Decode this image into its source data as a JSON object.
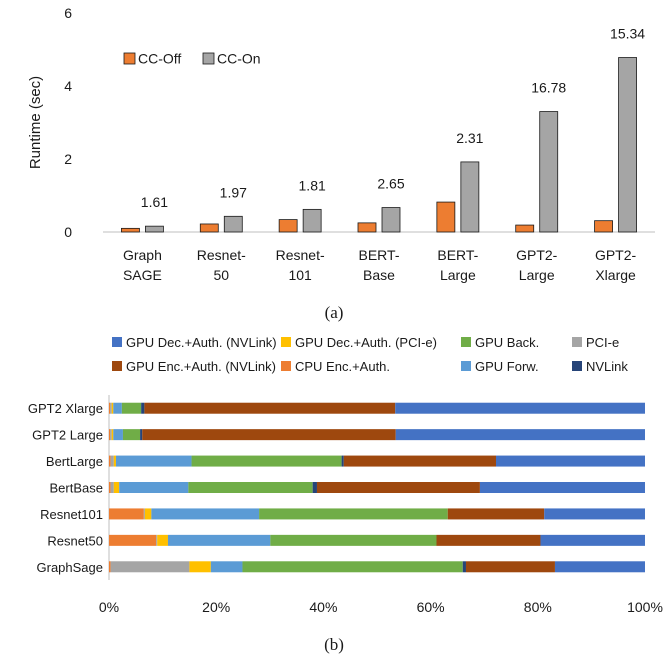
{
  "chart_data": [
    {
      "type": "bar",
      "caption": "(a)",
      "ylabel": "Runtime (sec)",
      "ylim": [
        0,
        6
      ],
      "yticks": [
        0,
        2,
        4,
        6
      ],
      "legend_placement": "top-left",
      "categories": [
        [
          "Graph",
          "SAGE"
        ],
        [
          "Resnet-",
          "50"
        ],
        [
          "Resnet-",
          "101"
        ],
        [
          "BERT-",
          "Base"
        ],
        [
          "BERT-",
          "Large"
        ],
        [
          "GPT2-",
          "Large"
        ],
        [
          "GPT2-",
          "Xlarge"
        ]
      ],
      "series": [
        {
          "name": "CC-Off",
          "color": "#ED7D31",
          "values": [
            0.1,
            0.22,
            0.34,
            0.25,
            0.82,
            0.19,
            0.31
          ]
        },
        {
          "name": "CC-On",
          "color": "#A5A5A5",
          "values": [
            0.16,
            0.43,
            0.62,
            0.67,
            1.92,
            3.3,
            4.78
          ]
        }
      ],
      "data_labels": [
        "1.61",
        "1.97",
        "1.81",
        "2.65",
        "2.31",
        "16.78",
        "15.34"
      ]
    },
    {
      "type": "bar",
      "orientation": "horizontal",
      "stacked": "percent",
      "caption": "(b)",
      "xlim": [
        0,
        100
      ],
      "xticks": [
        "0%",
        "20%",
        "40%",
        "60%",
        "80%",
        "100%"
      ],
      "legend_placement": "top",
      "categories": [
        "GPT2 Xlarge",
        "GPT2 Large",
        "BertLarge",
        "BertBase",
        "Resnet101",
        "Resnet50",
        "GraphSage"
      ],
      "series": [
        {
          "name": "CPU Enc.+Auth.",
          "color": "#ED7D31",
          "values": [
            0.2,
            0.2,
            0.3,
            0.3,
            6.5,
            8.8,
            0.3
          ]
        },
        {
          "name": "PCI-e",
          "color": "#A5A5A5",
          "values": [
            0.3,
            0.3,
            0.6,
            0.6,
            0.2,
            0.2,
            14.7
          ]
        },
        {
          "name": "GPU Dec.+Auth. (PCI-e)",
          "color": "#FFC000",
          "values": [
            0.3,
            0.3,
            0.4,
            1.0,
            1.2,
            2.0,
            4.0
          ]
        },
        {
          "name": "GPU Forw.",
          "color": "#5B9BD5",
          "values": [
            1.6,
            1.8,
            14.1,
            12.9,
            20.1,
            19.1,
            5.9
          ]
        },
        {
          "name": "GPU Back.",
          "color": "#70AD47",
          "values": [
            3.6,
            3.2,
            28.0,
            23.2,
            35.2,
            31.0,
            41.1
          ]
        },
        {
          "name": "NVLink",
          "color": "#264478",
          "values": [
            0.6,
            0.4,
            0.4,
            0.8,
            0.0,
            0.0,
            0.6
          ]
        },
        {
          "name": "GPU Enc.+Auth. (NVLink)",
          "color": "#9E480E",
          "values": [
            46.8,
            47.3,
            28.4,
            30.4,
            18.0,
            19.4,
            16.6
          ]
        },
        {
          "name": "GPU Dec.+Auth. (NVLink)",
          "color": "#4472C4",
          "values": [
            46.6,
            46.5,
            27.8,
            30.8,
            18.8,
            19.5,
            16.8
          ]
        }
      ],
      "legend_rows": [
        [
          "GPU Dec.+Auth. (NVLink)",
          "GPU Dec.+Auth. (PCI-e)",
          "GPU Back.",
          "PCI-e"
        ],
        [
          "GPU Enc.+Auth. (NVLink)",
          "CPU Enc.+Auth.",
          "GPU Forw.",
          "NVLink"
        ]
      ]
    }
  ]
}
